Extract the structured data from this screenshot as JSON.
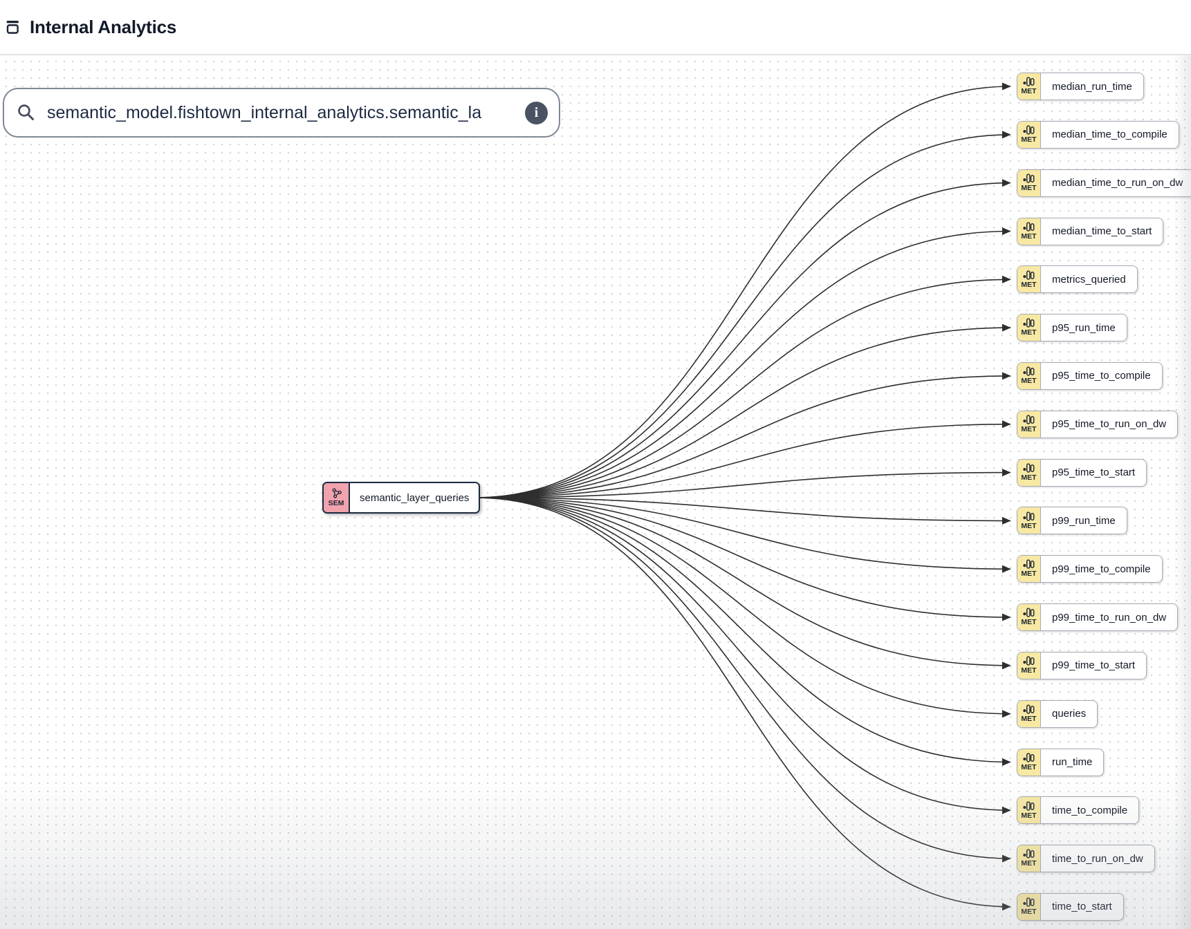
{
  "header": {
    "title": "Internal Analytics"
  },
  "search": {
    "value": "semantic_model.fishtown_internal_analytics.semantic_la",
    "info_label": "i"
  },
  "graph": {
    "source_node": {
      "type_label": "SEM",
      "name": "semantic_layer_queries"
    },
    "metric_type_label": "MET",
    "metrics": [
      "median_run_time",
      "median_time_to_compile",
      "median_time_to_run_on_dw",
      "median_time_to_start",
      "metrics_queried",
      "p95_run_time",
      "p95_time_to_compile",
      "p95_time_to_run_on_dw",
      "p95_time_to_start",
      "p99_run_time",
      "p99_time_to_compile",
      "p99_time_to_run_on_dw",
      "p99_time_to_start",
      "queries",
      "run_time",
      "time_to_compile",
      "time_to_run_on_dw",
      "time_to_start"
    ]
  },
  "colors": {
    "sem_badge": "#F0A2AD",
    "sem_border": "#1B2A40",
    "met_badge": "#F7E8A3",
    "met_border": "#A6ABB5",
    "edge": "#2E2E2E"
  }
}
